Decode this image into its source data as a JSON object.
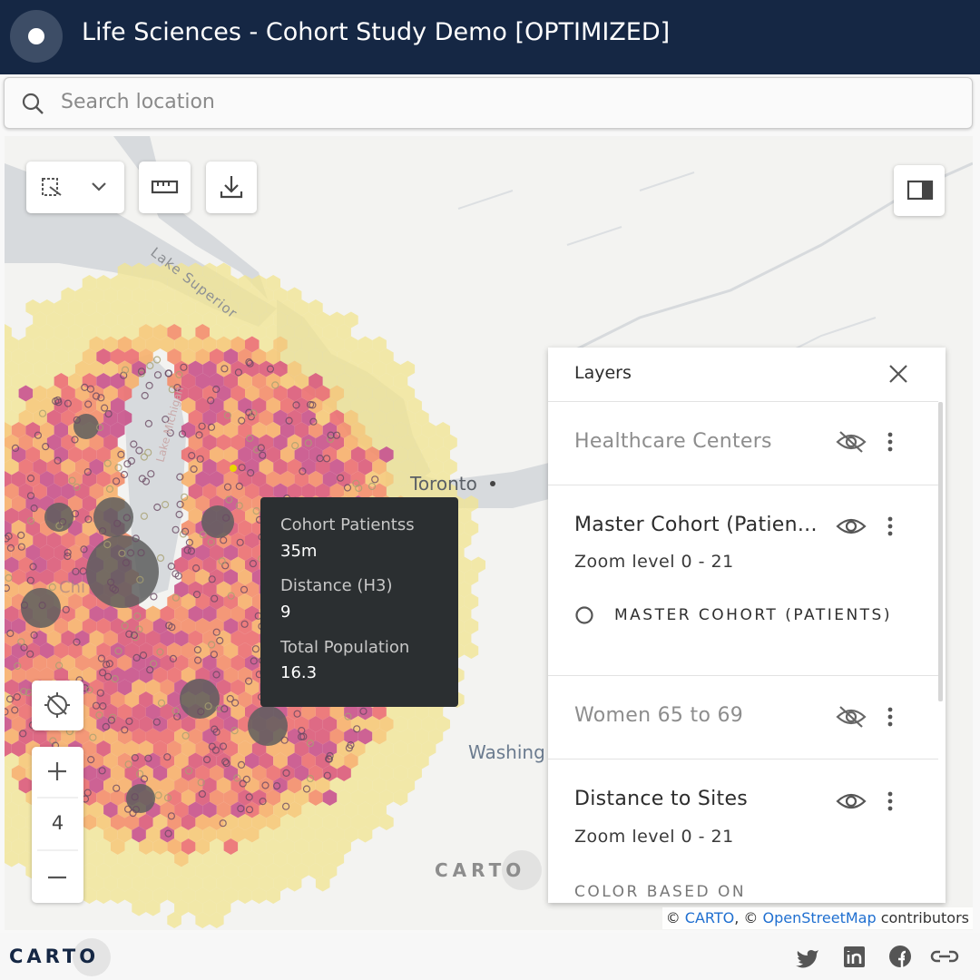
{
  "header": {
    "title": "Life Sciences - Cohort Study Demo [OPTIMIZED]"
  },
  "search": {
    "placeholder": "Search location"
  },
  "map": {
    "labels": {
      "lake_superior": "Lake Superior",
      "lake_michigan": "Lake Michigan",
      "chicago": "Chi",
      "toronto": "Toronto",
      "washington": "Washing"
    },
    "watermark": "CARTO",
    "zoom": "4"
  },
  "tooltip": {
    "items": [
      {
        "label": "Cohort Patientss",
        "value": "35m"
      },
      {
        "label": "Distance (H3)",
        "value": "9"
      },
      {
        "label": "Total Population",
        "value": "16.3"
      }
    ]
  },
  "layers_panel": {
    "title": "Layers",
    "layers": [
      {
        "name": "Healthcare Centers"
      },
      {
        "name": "Master Cohort (Patien...",
        "zoom": "Zoom level 0 - 21",
        "legend": "MASTER COHORT (PATIENTS)"
      },
      {
        "name": "Women 65 to 69"
      },
      {
        "name": "Distance to Sites",
        "zoom": "Zoom level 0 - 21",
        "legend_title": "COLOR BASED ON"
      }
    ]
  },
  "attribution": {
    "copy1": "©",
    "carto": "CARTO",
    "copy2": ", ©",
    "osm": "OpenStreetMap",
    "suffix": "contributors"
  },
  "footer": {
    "logo": "CARTO"
  }
}
